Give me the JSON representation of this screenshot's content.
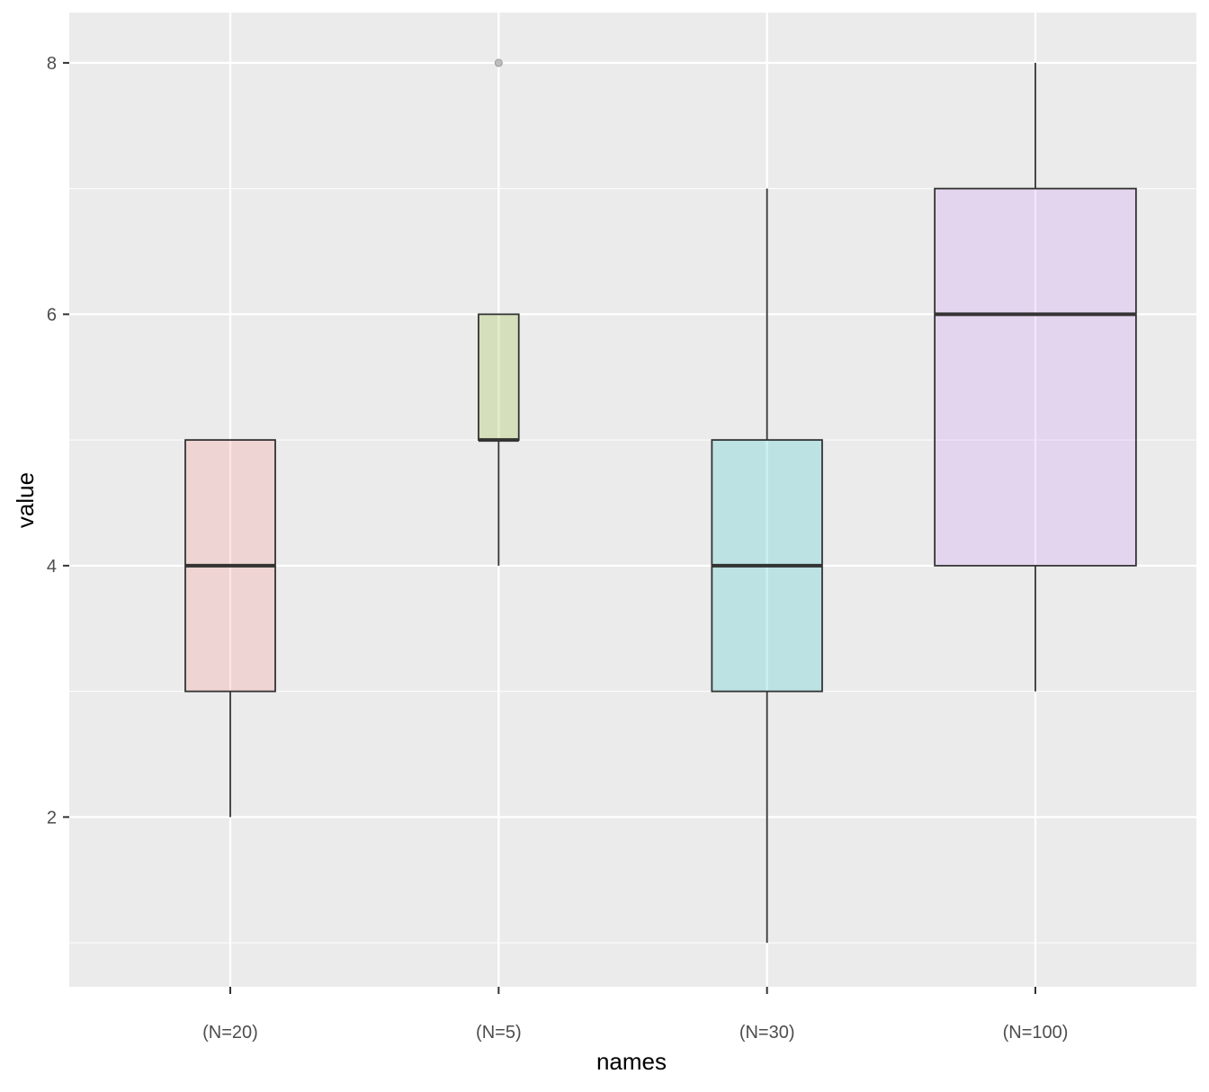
{
  "chart_data": {
    "type": "boxplot",
    "title": "",
    "xlabel": "names",
    "ylabel": "value",
    "ylim": [
      0.65,
      8.4
    ],
    "y_ticks": [
      2,
      4,
      6,
      8
    ],
    "y_minor_ticks": [
      1,
      3,
      5,
      7
    ],
    "grid": true,
    "legend": "none",
    "categories": [
      "(N=20)",
      "(N=5)",
      "(N=30)",
      "(N=100)"
    ],
    "series": [
      {
        "category": "(N=20)",
        "min": 2,
        "q1": 3,
        "median": 4,
        "q3": 5,
        "max": 5,
        "outliers": [],
        "color": "#F8766D",
        "width_factor": 0.447
      },
      {
        "category": "(N=5)",
        "min": 4,
        "q1": 5,
        "median": 5,
        "q3": 6,
        "max": 6,
        "outliers": [
          8
        ],
        "color": "#7CAE00",
        "width_factor": 0.2
      },
      {
        "category": "(N=30)",
        "min": 1,
        "q1": 3,
        "median": 4,
        "q3": 5,
        "max": 7,
        "outliers": [],
        "color": "#00BFC4",
        "width_factor": 0.548
      },
      {
        "category": "(N=100)",
        "min": 3,
        "q1": 4,
        "median": 6,
        "q3": 7,
        "max": 8,
        "outliers": [],
        "color": "#C77CFF",
        "width_factor": 1.0
      }
    ],
    "panel_background": "#EBEBEB",
    "grid_color": "#FFFFFF",
    "box_alpha": 0.2
  }
}
